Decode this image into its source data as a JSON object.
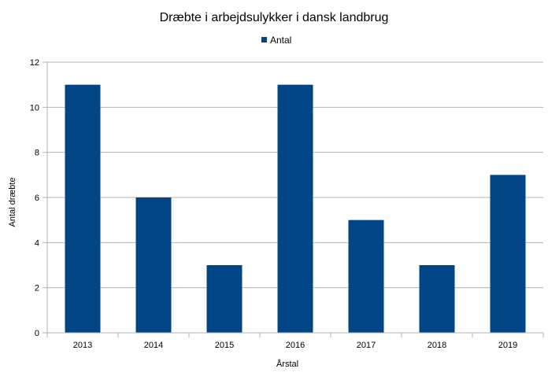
{
  "chart_data": {
    "type": "bar",
    "title": "Dræbte i arbejdsulykker i dansk landbrug",
    "xlabel": "Årstal",
    "ylabel": "Antal dræbte",
    "categories": [
      "2013",
      "2014",
      "2015",
      "2016",
      "2017",
      "2018",
      "2019"
    ],
    "series": [
      {
        "name": "Antal",
        "values": [
          11,
          6,
          3,
          11,
          5,
          3,
          7
        ],
        "color": "#004586"
      }
    ],
    "ylim": [
      0,
      12
    ],
    "yticks": [
      0,
      2,
      4,
      6,
      8,
      10,
      12
    ],
    "grid": true,
    "legend": "top-center"
  }
}
